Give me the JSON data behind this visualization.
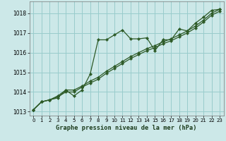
{
  "title": "Graphe pression niveau de la mer (hPa)",
  "bg_color": "#cce8e8",
  "grid_color": "#99cccc",
  "line_color": "#2d5a27",
  "marker_color": "#2d5a27",
  "xlim": [
    -0.5,
    23.5
  ],
  "ylim": [
    1012.8,
    1018.6
  ],
  "yticks": [
    1013,
    1014,
    1015,
    1016,
    1017,
    1018
  ],
  "xticks": [
    0,
    1,
    2,
    3,
    4,
    5,
    6,
    7,
    8,
    9,
    10,
    11,
    12,
    13,
    14,
    15,
    16,
    17,
    18,
    19,
    20,
    21,
    22,
    23
  ],
  "series1_x": [
    0,
    1,
    2,
    3,
    4,
    5,
    6,
    7,
    8,
    9,
    10,
    11,
    12,
    13,
    14,
    15,
    16,
    17,
    18,
    19,
    20,
    21,
    22,
    23
  ],
  "series1": [
    1013.1,
    1013.5,
    1013.6,
    1013.7,
    1014.1,
    1013.8,
    1014.1,
    1014.9,
    1016.65,
    1016.65,
    1016.9,
    1017.15,
    1016.7,
    1016.7,
    1016.75,
    1016.1,
    1016.65,
    1016.65,
    1017.2,
    1017.1,
    1017.5,
    1017.8,
    1018.15,
    1018.2
  ],
  "series2_x": [
    0,
    1,
    2,
    3,
    4,
    5,
    6,
    7,
    8,
    9,
    10,
    11,
    12,
    13,
    14,
    15,
    16,
    17,
    18,
    19,
    20,
    21,
    22,
    23
  ],
  "series2": [
    1013.1,
    1013.5,
    1013.6,
    1013.8,
    1014.1,
    1014.1,
    1014.3,
    1014.55,
    1014.75,
    1015.05,
    1015.3,
    1015.55,
    1015.8,
    1016.0,
    1016.2,
    1016.35,
    1016.55,
    1016.7,
    1016.9,
    1017.1,
    1017.35,
    1017.65,
    1018.0,
    1018.2
  ],
  "series3_x": [
    0,
    1,
    2,
    3,
    4,
    5,
    6,
    7,
    8,
    9,
    10,
    11,
    12,
    13,
    14,
    15,
    16,
    17,
    18,
    19,
    20,
    21,
    22,
    23
  ],
  "series3": [
    1013.1,
    1013.5,
    1013.6,
    1013.75,
    1014.0,
    1014.0,
    1014.25,
    1014.45,
    1014.65,
    1014.95,
    1015.2,
    1015.45,
    1015.7,
    1015.9,
    1016.1,
    1016.25,
    1016.45,
    1016.6,
    1016.8,
    1017.0,
    1017.25,
    1017.55,
    1017.9,
    1018.1
  ]
}
